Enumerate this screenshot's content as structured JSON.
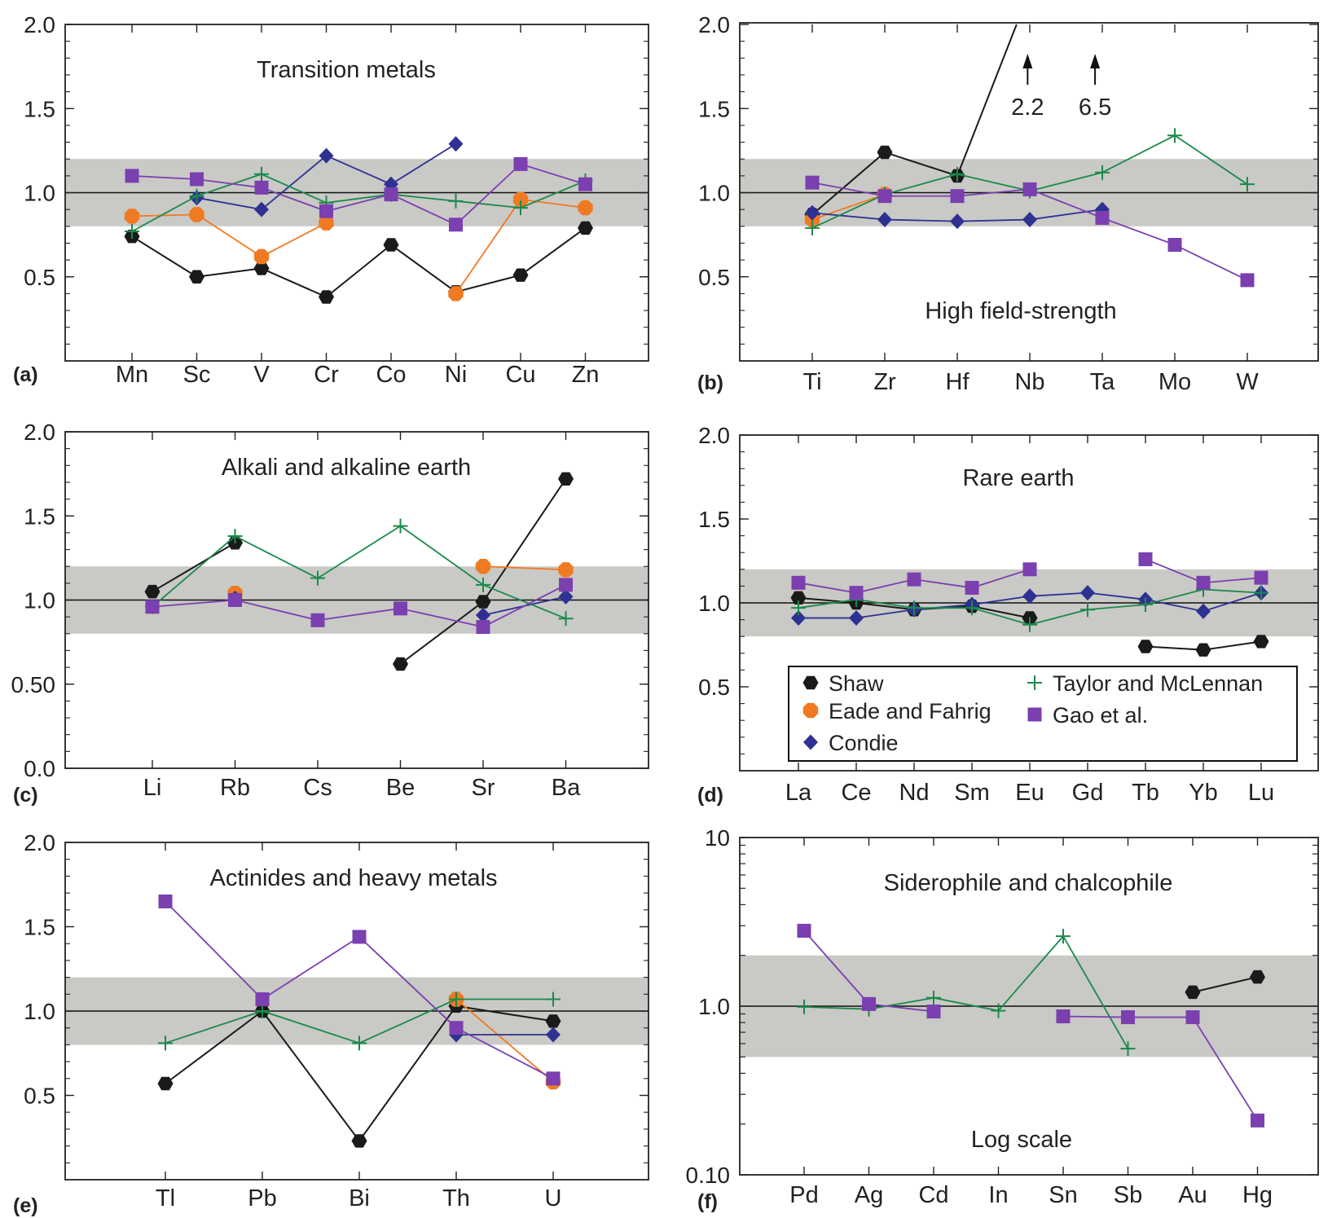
{
  "figure": {
    "reference_line": 1.0,
    "band": [
      0.8,
      1.2
    ],
    "colors": {
      "band": "#c9c9c6",
      "Shaw": "#1a1a1a",
      "Eade and Fahrig": "#f07a22",
      "Condie": "#2e3192",
      "Taylor and McLennan": "#1a8a4a",
      "Gao et al.": "#7b3fb0"
    }
  },
  "legend": {
    "items": [
      {
        "name": "Shaw",
        "marker": "hexagon"
      },
      {
        "name": "Eade and Fahrig",
        "marker": "octagon"
      },
      {
        "name": "Condie",
        "marker": "diamond"
      },
      {
        "name": "Taylor and McLennan",
        "marker": "plus"
      },
      {
        "name": "Gao et al.",
        "marker": "square"
      }
    ]
  },
  "chart_data": [
    {
      "panel": "a",
      "letter": "(a)",
      "type": "line",
      "title": "Transition metals",
      "scale": "linear",
      "ylim": [
        0,
        2.0
      ],
      "yticks": [
        "0.5",
        "1.0",
        "1.5",
        "2.0"
      ],
      "ytick_values": [
        0.5,
        1.0,
        1.5,
        2.0
      ],
      "categories": [
        "Mn",
        "Sc",
        "V",
        "Cr",
        "Co",
        "Ni",
        "Cu",
        "Zn"
      ],
      "series": [
        {
          "name": "Shaw",
          "values": [
            0.74,
            0.5,
            0.55,
            0.38,
            0.69,
            0.41,
            0.51,
            0.79
          ]
        },
        {
          "name": "Eade and Fahrig",
          "values": [
            0.86,
            0.87,
            0.62,
            0.82,
            null,
            0.4,
            0.96,
            0.91
          ]
        },
        {
          "name": "Condie",
          "values": [
            null,
            0.97,
            0.9,
            1.22,
            1.05,
            1.29,
            null,
            null
          ]
        },
        {
          "name": "Taylor and McLennan",
          "values": [
            0.77,
            0.98,
            1.11,
            0.94,
            0.99,
            0.95,
            0.91,
            1.07
          ]
        },
        {
          "name": "Gao et al.",
          "values": [
            1.1,
            1.08,
            1.03,
            0.89,
            0.99,
            0.81,
            1.17,
            1.05
          ]
        }
      ]
    },
    {
      "panel": "b",
      "letter": "(b)",
      "type": "line",
      "title": "High field-strength",
      "scale": "linear",
      "ylim": [
        0,
        2.0
      ],
      "yticks": [
        "0.5",
        "1.0",
        "1.5",
        "2.0"
      ],
      "ytick_values": [
        0.5,
        1.0,
        1.5,
        2.0
      ],
      "categories": [
        "Ti",
        "Zr",
        "Hf",
        "Nb",
        "Ta",
        "Mo",
        "W"
      ],
      "series": [
        {
          "name": "Shaw",
          "values": [
            0.87,
            1.24,
            1.1,
            2.2,
            null,
            null,
            null
          ]
        },
        {
          "name": "Eade and Fahrig",
          "values": [
            0.84,
            0.99,
            null,
            null,
            null,
            null,
            null
          ]
        },
        {
          "name": "Condie",
          "values": [
            0.88,
            0.84,
            0.83,
            0.84,
            0.9,
            null,
            null
          ]
        },
        {
          "name": "Taylor and McLennan",
          "values": [
            0.79,
            0.99,
            1.11,
            1.01,
            1.12,
            1.34,
            1.05
          ]
        },
        {
          "name": "Gao et al.",
          "values": [
            1.06,
            0.98,
            0.98,
            1.02,
            0.85,
            0.69,
            0.48
          ]
        }
      ],
      "annotations": [
        "2.2",
        "6.5"
      ],
      "annotation_x": [
        2.97,
        3.9
      ]
    },
    {
      "panel": "c",
      "letter": "(c)",
      "type": "line",
      "title": "Alkali and alkaline earth",
      "scale": "linear",
      "ylim": [
        0,
        2.0
      ],
      "yticks": [
        "0.0",
        "0.50",
        "1.0",
        "1.5",
        "2.0"
      ],
      "ytick_values": [
        0.0,
        0.5,
        1.0,
        1.5,
        2.0
      ],
      "categories": [
        "Li",
        "Rb",
        "Cs",
        "Be",
        "Sr",
        "Ba"
      ],
      "series": [
        {
          "name": "Shaw",
          "values": [
            1.05,
            1.34,
            null,
            0.62,
            0.99,
            1.72
          ]
        },
        {
          "name": "Eade and Fahrig",
          "values": [
            null,
            1.04,
            null,
            null,
            1.2,
            1.18
          ]
        },
        {
          "name": "Condie",
          "values": [
            null,
            1.01,
            null,
            null,
            0.91,
            1.02
          ]
        },
        {
          "name": "Taylor and McLennan",
          "values": [
            0.96,
            1.38,
            1.13,
            1.44,
            1.09,
            0.89
          ]
        },
        {
          "name": "Gao et al.",
          "values": [
            0.96,
            1.0,
            0.88,
            0.95,
            0.84,
            1.09
          ]
        }
      ]
    },
    {
      "panel": "d",
      "letter": "(d)",
      "type": "line",
      "title": "Rare earth",
      "scale": "linear",
      "ylim": [
        0,
        2.0
      ],
      "yticks": [
        "0.5",
        "1.0",
        "1.5",
        "2.0"
      ],
      "ytick_values": [
        0.5,
        1.0,
        1.5,
        2.0
      ],
      "categories": [
        "La",
        "Ce",
        "Nd",
        "Sm",
        "Eu",
        "Gd",
        "Tb",
        "Yb",
        "Lu"
      ],
      "series": [
        {
          "name": "Shaw",
          "values": [
            1.03,
            1.0,
            0.96,
            0.98,
            0.91,
            null,
            0.74,
            0.72,
            0.77
          ]
        },
        {
          "name": "Condie",
          "values": [
            0.91,
            0.91,
            0.96,
            0.99,
            1.04,
            1.06,
            1.02,
            0.95,
            1.06
          ]
        },
        {
          "name": "Taylor and McLennan",
          "values": [
            0.97,
            1.02,
            0.97,
            0.97,
            0.87,
            0.96,
            0.99,
            1.08,
            1.06
          ]
        },
        {
          "name": "Gao et al.",
          "values": [
            1.12,
            1.06,
            1.14,
            1.09,
            1.2,
            null,
            1.26,
            1.12,
            1.15
          ]
        }
      ]
    },
    {
      "panel": "e",
      "letter": "(e)",
      "type": "line",
      "title": "Actinides and heavy metals",
      "scale": "linear",
      "ylim": [
        0,
        2.0
      ],
      "yticks": [
        "0.5",
        "1.0",
        "1.5",
        "2.0"
      ],
      "ytick_values": [
        0.5,
        1.0,
        1.5,
        2.0
      ],
      "categories": [
        "Tl",
        "Pb",
        "Bi",
        "Th",
        "U"
      ],
      "series": [
        {
          "name": "Shaw",
          "values": [
            0.57,
            1.0,
            0.23,
            1.03,
            0.94
          ]
        },
        {
          "name": "Eade and Fahrig",
          "values": [
            null,
            null,
            null,
            1.07,
            0.58
          ]
        },
        {
          "name": "Condie",
          "values": [
            null,
            null,
            null,
            0.86,
            0.86
          ]
        },
        {
          "name": "Taylor and McLennan",
          "values": [
            0.81,
            1.0,
            0.81,
            1.07,
            1.07
          ]
        },
        {
          "name": "Gao et al.",
          "values": [
            1.65,
            1.07,
            1.44,
            0.9,
            0.6
          ]
        }
      ]
    },
    {
      "panel": "f",
      "letter": "(f)",
      "type": "line",
      "title": "Siderophile and chalcophile",
      "subtitle": "Log scale",
      "scale": "log",
      "ylim": [
        0.1,
        10
      ],
      "yticks": [
        "0.10",
        "1.0",
        "10"
      ],
      "ytick_values": [
        0.1,
        1.0,
        10
      ],
      "band": [
        0.5,
        2.0
      ],
      "categories": [
        "Pd",
        "Ag",
        "Cd",
        "In",
        "Sn",
        "Sb",
        "Au",
        "Hg"
      ],
      "series": [
        {
          "name": "Shaw",
          "values": [
            null,
            null,
            null,
            null,
            null,
            null,
            1.21,
            1.49
          ]
        },
        {
          "name": "Taylor and McLennan",
          "values": [
            0.99,
            0.96,
            1.12,
            0.94,
            2.6,
            0.56,
            null,
            null
          ]
        },
        {
          "name": "Gao et al.",
          "values": [
            2.8,
            1.03,
            0.93,
            null,
            0.87,
            0.86,
            0.86,
            0.21
          ]
        }
      ]
    }
  ]
}
